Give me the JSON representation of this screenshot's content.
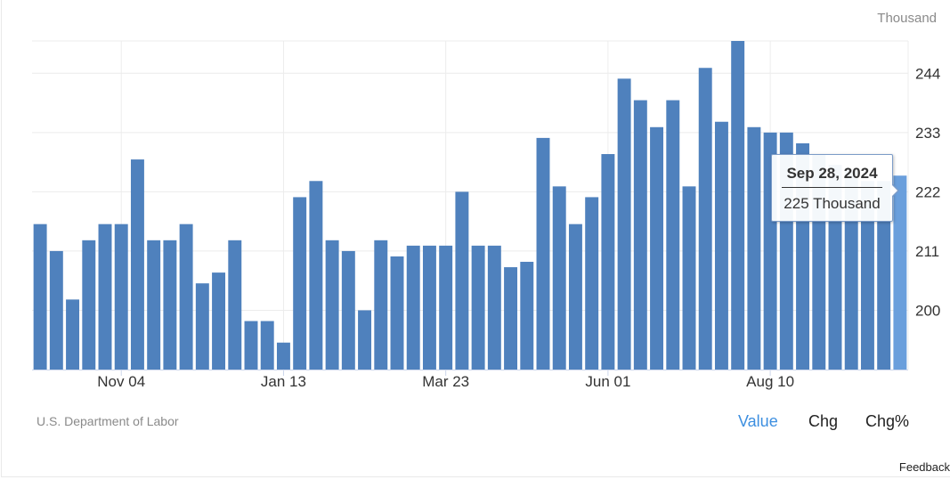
{
  "header": {
    "unit": "Thousand"
  },
  "footer": {
    "source": "U.S. Department of Labor",
    "tabs": [
      "Value",
      "Chg",
      "Chg%"
    ],
    "active_tab": "Value",
    "feedback": "Feedback"
  },
  "tooltip": {
    "date": "Sep 28, 2024",
    "value": "225 Thousand"
  },
  "colors": {
    "bar": "#4f81bd",
    "bar_highlight": "#6a9fdc",
    "grid": "#ececec",
    "accent": "#3d8fe0"
  },
  "chart_data": {
    "type": "bar",
    "title": "",
    "xlabel": "",
    "ylabel": "",
    "y_ticks": [
      200,
      211,
      222,
      233,
      244
    ],
    "ylim": [
      189,
      250
    ],
    "x_tick_labels": [
      {
        "index": 5,
        "label": "Nov 04"
      },
      {
        "index": 15,
        "label": "Jan 13"
      },
      {
        "index": 25,
        "label": "Mar 23"
      },
      {
        "index": 35,
        "label": "Jun 01"
      },
      {
        "index": 45,
        "label": "Aug 10"
      }
    ],
    "highlight_index": 53,
    "values": [
      216,
      211,
      202,
      213,
      216,
      216,
      228,
      213,
      213,
      216,
      205,
      207,
      213,
      198,
      198,
      194,
      221,
      224,
      213,
      211,
      200,
      213,
      210,
      212,
      212,
      212,
      222,
      212,
      212,
      208,
      209,
      232,
      223,
      216,
      221,
      229,
      243,
      239,
      234,
      239,
      223,
      245,
      235,
      250,
      234,
      233,
      233,
      231,
      229,
      227,
      226,
      224,
      224,
      225
    ]
  }
}
